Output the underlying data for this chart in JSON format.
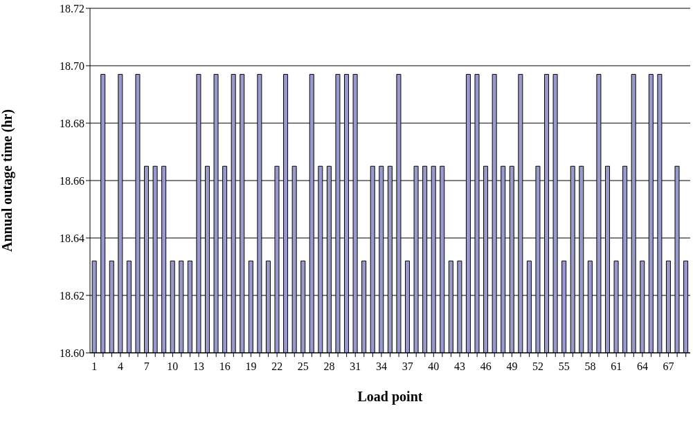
{
  "chart_data": {
    "type": "bar",
    "xlabel": "Load point",
    "ylabel": "Annual outage time (hr)",
    "categories": [
      "1",
      null,
      null,
      "4",
      null,
      null,
      "7",
      null,
      null,
      "10",
      null,
      null,
      "13",
      null,
      null,
      "16",
      null,
      null,
      "19",
      null,
      null,
      "22",
      null,
      null,
      "25",
      null,
      null,
      "28",
      null,
      null,
      "31",
      null,
      null,
      "34",
      null,
      null,
      "37",
      null,
      null,
      "40",
      null,
      null,
      "43",
      null,
      null,
      "46",
      null,
      null,
      "49",
      null,
      null,
      "52",
      null,
      null,
      "55",
      null,
      null,
      "58",
      null,
      null,
      "61",
      null,
      null,
      "64",
      null,
      null,
      "67",
      null,
      null
    ],
    "values": [
      18.632,
      18.697,
      18.632,
      18.697,
      18.632,
      18.697,
      18.665,
      18.665,
      18.665,
      18.632,
      18.632,
      18.632,
      18.697,
      18.665,
      18.697,
      18.665,
      18.697,
      18.697,
      18.632,
      18.697,
      18.632,
      18.665,
      18.697,
      18.665,
      18.632,
      18.697,
      18.665,
      18.665,
      18.697,
      18.697,
      18.697,
      18.632,
      18.665,
      18.665,
      18.665,
      18.697,
      18.632,
      18.665,
      18.665,
      18.665,
      18.665,
      18.632,
      18.632,
      18.697,
      18.697,
      18.665,
      18.697,
      18.665,
      18.665,
      18.697,
      18.632,
      18.665,
      18.697,
      18.697,
      18.632,
      18.665,
      18.665,
      18.632,
      18.697,
      18.665,
      18.632,
      18.665,
      18.697,
      18.632,
      18.697,
      18.697,
      18.632,
      18.665,
      18.632
    ],
    "color": "#9999cc",
    "ylim": [
      18.6,
      18.72
    ],
    "yticks": [
      {
        "value": 18.6,
        "label": "18.60"
      },
      {
        "value": 18.62,
        "label": "18.62"
      },
      {
        "value": 18.64,
        "label": "18.64"
      },
      {
        "value": 18.66,
        "label": "18.66"
      },
      {
        "value": 18.68,
        "label": "18.68"
      },
      {
        "value": 18.7,
        "label": "18.70"
      },
      {
        "value": 18.72,
        "label": "18.72"
      }
    ],
    "grid": "y",
    "legend": false
  }
}
